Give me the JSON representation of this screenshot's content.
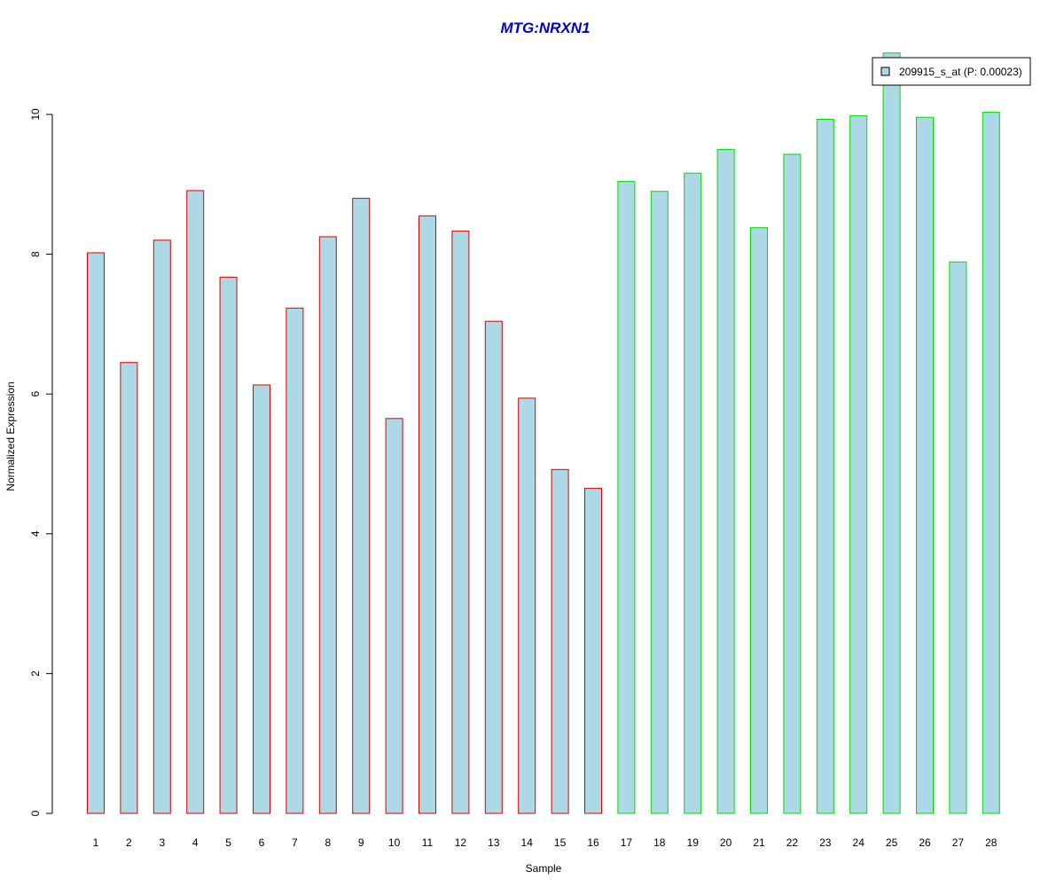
{
  "chart_data": {
    "type": "bar",
    "title": "MTG:NRXN1",
    "xlabel": "Sample",
    "ylabel": "Normalized Expression",
    "ylim": [
      0,
      10
    ],
    "yticks": [
      0,
      2,
      4,
      6,
      8,
      10
    ],
    "grid": false,
    "legend_position": "top-right",
    "categories": [
      "1",
      "2",
      "3",
      "4",
      "5",
      "6",
      "7",
      "8",
      "9",
      "10",
      "11",
      "12",
      "13",
      "14",
      "15",
      "16",
      "17",
      "18",
      "19",
      "20",
      "21",
      "22",
      "23",
      "24",
      "25",
      "26",
      "27",
      "28"
    ],
    "series": [
      {
        "name": "209915_s_at (P: 0.00023)",
        "values": [
          8.02,
          6.45,
          8.2,
          8.91,
          7.67,
          6.13,
          7.23,
          8.25,
          8.8,
          5.65,
          8.55,
          8.33,
          7.04,
          5.94,
          4.92,
          4.65,
          9.04,
          8.9,
          9.16,
          9.5,
          8.38,
          9.43,
          9.93,
          9.98,
          10.88,
          9.96,
          7.89,
          10.03
        ]
      }
    ],
    "groups": [
      {
        "from": 1,
        "to": 16,
        "border_color": "#dd0000"
      },
      {
        "from": 17,
        "to": 28,
        "border_color": "#00dd00"
      }
    ],
    "colors": {
      "bar_fill": "#add8e6",
      "title": "#0000cc",
      "axis": "#000000"
    }
  }
}
